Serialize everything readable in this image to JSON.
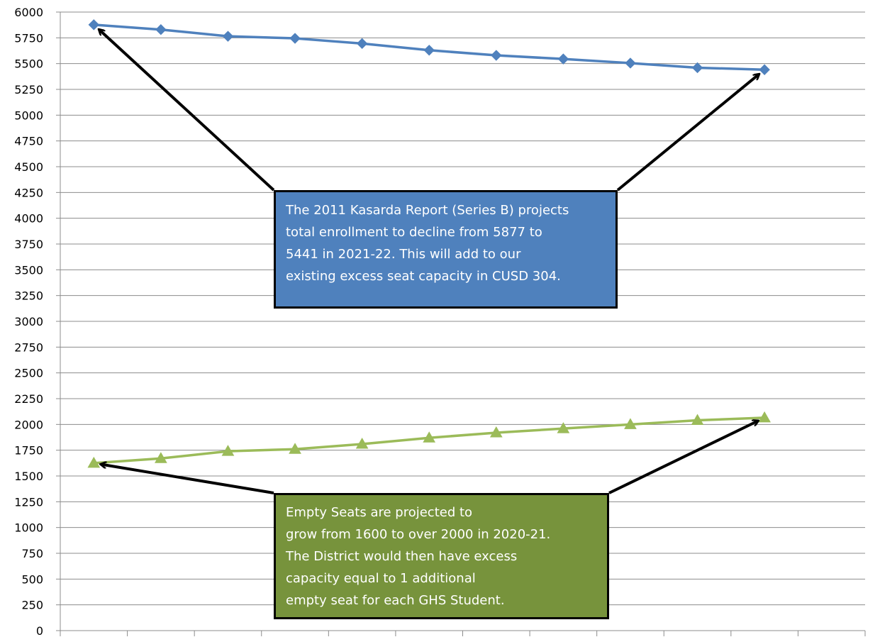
{
  "chart_data": {
    "type": "line",
    "title": "",
    "xlabel": "",
    "ylabel": "",
    "ylim": [
      0,
      6000
    ],
    "y_ticks": [
      0,
      250,
      500,
      750,
      1000,
      1250,
      1500,
      1750,
      2000,
      2250,
      2500,
      2750,
      3000,
      3250,
      3500,
      3750,
      4000,
      4250,
      4500,
      4750,
      5000,
      5250,
      5500,
      5750,
      6000
    ],
    "x_tick_labels": [],
    "grid": true,
    "x": [
      1,
      2,
      3,
      4,
      5,
      6,
      7,
      8,
      9,
      10,
      11
    ],
    "series": [
      {
        "values": [
          5877,
          5830,
          5765,
          5745,
          5695,
          5630,
          5580,
          5545,
          5505,
          5460,
          5441
        ],
        "color": "#4f81bd",
        "marker": "diamond"
      },
      {
        "values": [
          1625,
          1670,
          1740,
          1760,
          1810,
          1870,
          1920,
          1960,
          2000,
          2040,
          2065
        ],
        "color": "#9bbb59",
        "marker": "triangle"
      }
    ],
    "annotations": [
      {
        "lines": [
          "The 2011 Kasarda Report (Series B) projects",
          "total enrollment to decline from  5877 to",
          "5441 in 2021-22. This will add to our",
          "existing  excess seat capacity in CUSD 304."
        ],
        "color": "#4f81bd",
        "points_to": [
          {
            "x": 1,
            "y": 5877
          },
          {
            "x": 11,
            "y": 5441
          }
        ]
      },
      {
        "lines": [
          "Empty Seats are projected to",
          "grow from 1600 to over 2000 in 2020-21.",
          "The District would then have excess",
          "capacity equal to 1 additional",
          "empty seat for each GHS Student."
        ],
        "color": "#77933c",
        "points_to": [
          {
            "x": 1,
            "y": 1625
          },
          {
            "x": 11,
            "y": 2065
          }
        ]
      }
    ]
  }
}
